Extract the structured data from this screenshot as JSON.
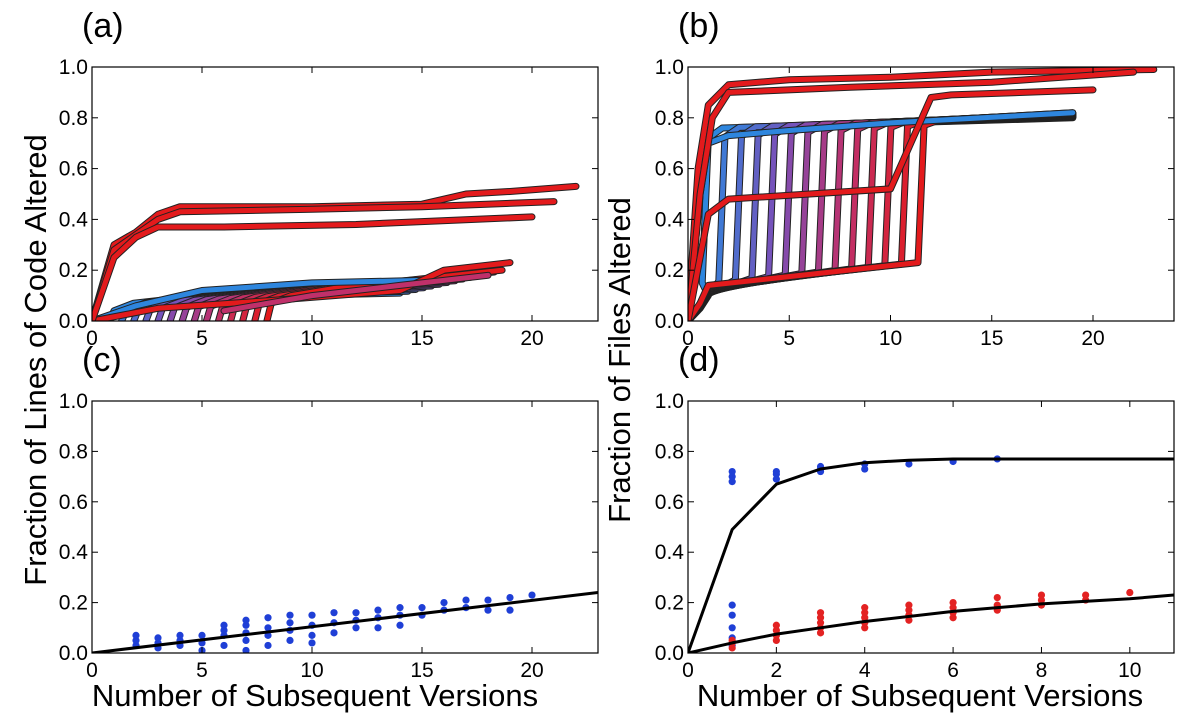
{
  "figure": {
    "ylabel_left": "Fraction of Lines of Code Altered",
    "ylabel_right": "Fraction of Files Altered",
    "xlabel_left": "Number of Subsequent Versions",
    "xlabel_right": "Number of Subsequent Versions"
  },
  "colors": {
    "red": "#e31a1c",
    "blue": "#2e86de",
    "purple": "#7a4fb8",
    "magenta": "#c0306a",
    "dot_blue": "#1f3fd6",
    "dot_red": "#e32222",
    "fit_line": "#000000"
  },
  "chart_data": [
    {
      "panel": "(a)",
      "type": "line",
      "xlim": [
        0,
        23
      ],
      "ylim": [
        0,
        1.0
      ],
      "xticks": [
        0,
        5,
        10,
        15,
        20
      ],
      "yticks": [
        0.0,
        0.2,
        0.4,
        0.6,
        0.8,
        1.0
      ],
      "grid": false,
      "upper_series": [
        {
          "x": [
            0,
            1,
            2,
            3,
            4,
            10,
            15,
            17,
            19,
            22
          ],
          "y": [
            0,
            0.3,
            0.35,
            0.42,
            0.45,
            0.45,
            0.46,
            0.5,
            0.51,
            0.53
          ]
        },
        {
          "x": [
            0,
            1,
            2,
            3,
            4,
            10,
            15,
            21
          ],
          "y": [
            0,
            0.28,
            0.34,
            0.4,
            0.43,
            0.44,
            0.45,
            0.47
          ]
        },
        {
          "x": [
            0,
            1,
            2,
            3,
            6,
            12,
            20
          ],
          "y": [
            0,
            0.25,
            0.33,
            0.37,
            0.37,
            0.38,
            0.41
          ]
        }
      ],
      "lower_series_end": [
        {
          "x": 19,
          "y": 0.23
        },
        {
          "x": 18,
          "y": 0.18
        }
      ],
      "lower_bundle_count": 14
    },
    {
      "panel": "(b)",
      "type": "line",
      "xlim": [
        0,
        24
      ],
      "ylim": [
        0,
        1.0
      ],
      "xticks": [
        0,
        5,
        10,
        15,
        20
      ],
      "yticks": [
        0.0,
        0.2,
        0.4,
        0.6,
        0.8,
        1.0
      ],
      "grid": false,
      "upper_series": [
        {
          "x": [
            0,
            0.5,
            1,
            2,
            5,
            10,
            15,
            23
          ],
          "y": [
            0,
            0.6,
            0.85,
            0.93,
            0.95,
            0.96,
            0.98,
            0.99
          ]
        },
        {
          "x": [
            0,
            0.6,
            1.2,
            2,
            8,
            15,
            22
          ],
          "y": [
            0,
            0.5,
            0.8,
            0.9,
            0.92,
            0.94,
            0.98
          ]
        },
        {
          "x": [
            0,
            1,
            2,
            10,
            12,
            13,
            20
          ],
          "y": [
            0,
            0.42,
            0.48,
            0.52,
            0.88,
            0.89,
            0.91
          ]
        }
      ],
      "bundle_count": 14,
      "bundle_end": {
        "x": 19,
        "y": 0.82
      }
    },
    {
      "panel": "(c)",
      "type": "scatter",
      "xlim": [
        0,
        23
      ],
      "ylim": [
        0,
        1.0
      ],
      "xticks": [
        0,
        5,
        10,
        15,
        20
      ],
      "yticks": [
        0.0,
        0.2,
        0.4,
        0.6,
        0.8,
        1.0
      ],
      "grid": false,
      "points": [
        [
          2,
          0.03
        ],
        [
          2,
          0.05
        ],
        [
          2,
          0.07
        ],
        [
          3,
          0.02
        ],
        [
          3,
          0.04
        ],
        [
          3,
          0.06
        ],
        [
          4,
          0.03
        ],
        [
          4,
          0.05
        ],
        [
          4,
          0.07
        ],
        [
          5,
          0.01
        ],
        [
          5,
          0.04
        ],
        [
          5,
          0.07
        ],
        [
          6,
          0.03
        ],
        [
          6,
          0.07
        ],
        [
          6,
          0.09
        ],
        [
          6,
          0.11
        ],
        [
          7,
          0.01
        ],
        [
          7,
          0.05
        ],
        [
          7,
          0.08
        ],
        [
          7,
          0.11
        ],
        [
          7,
          0.13
        ],
        [
          8,
          0.03
        ],
        [
          8,
          0.07
        ],
        [
          8,
          0.1
        ],
        [
          8,
          0.14
        ],
        [
          9,
          0.05
        ],
        [
          9,
          0.09
        ],
        [
          9,
          0.12
        ],
        [
          9,
          0.15
        ],
        [
          10,
          0.04
        ],
        [
          10,
          0.07
        ],
        [
          10,
          0.11
        ],
        [
          10,
          0.15
        ],
        [
          11,
          0.08
        ],
        [
          11,
          0.12
        ],
        [
          11,
          0.16
        ],
        [
          12,
          0.1
        ],
        [
          12,
          0.13
        ],
        [
          12,
          0.16
        ],
        [
          13,
          0.1
        ],
        [
          13,
          0.14
        ],
        [
          13,
          0.17
        ],
        [
          14,
          0.11
        ],
        [
          14,
          0.15
        ],
        [
          14,
          0.18
        ],
        [
          15,
          0.15
        ],
        [
          15,
          0.18
        ],
        [
          16,
          0.17
        ],
        [
          16,
          0.2
        ],
        [
          17,
          0.18
        ],
        [
          17,
          0.21
        ],
        [
          18,
          0.17
        ],
        [
          18,
          0.21
        ],
        [
          19,
          0.17
        ],
        [
          19,
          0.22
        ],
        [
          20,
          0.23
        ]
      ],
      "fit": {
        "x": [
          0,
          23
        ],
        "y": [
          0,
          0.24
        ]
      }
    },
    {
      "panel": "(d)",
      "type": "scatter",
      "xlim": [
        0,
        11
      ],
      "ylim": [
        0,
        1.0
      ],
      "xticks": [
        0,
        2,
        4,
        6,
        8,
        10
      ],
      "yticks": [
        0.0,
        0.2,
        0.4,
        0.6,
        0.8,
        1.0
      ],
      "grid": false,
      "blue_points": [
        [
          1,
          0.68
        ],
        [
          1,
          0.7
        ],
        [
          1,
          0.72
        ],
        [
          1,
          0.19
        ],
        [
          1,
          0.15
        ],
        [
          1,
          0.1
        ],
        [
          1,
          0.06
        ],
        [
          1,
          0.03
        ],
        [
          2,
          0.69
        ],
        [
          2,
          0.71
        ],
        [
          2,
          0.72
        ],
        [
          3,
          0.72
        ],
        [
          3,
          0.73
        ],
        [
          3,
          0.74
        ],
        [
          4,
          0.73
        ],
        [
          4,
          0.75
        ],
        [
          5,
          0.75
        ],
        [
          6,
          0.76
        ],
        [
          7,
          0.77
        ]
      ],
      "red_points": [
        [
          1,
          0.02
        ],
        [
          1,
          0.04
        ],
        [
          1,
          0.05
        ],
        [
          2,
          0.05
        ],
        [
          2,
          0.07
        ],
        [
          2,
          0.09
        ],
        [
          2,
          0.11
        ],
        [
          3,
          0.08
        ],
        [
          3,
          0.1
        ],
        [
          3,
          0.12
        ],
        [
          3,
          0.14
        ],
        [
          3,
          0.16
        ],
        [
          4,
          0.1
        ],
        [
          4,
          0.12
        ],
        [
          4,
          0.14
        ],
        [
          4,
          0.16
        ],
        [
          4,
          0.18
        ],
        [
          5,
          0.13
        ],
        [
          5,
          0.15
        ],
        [
          5,
          0.17
        ],
        [
          5,
          0.19
        ],
        [
          6,
          0.14
        ],
        [
          6,
          0.16
        ],
        [
          6,
          0.18
        ],
        [
          6,
          0.2
        ],
        [
          7,
          0.17
        ],
        [
          7,
          0.19
        ],
        [
          7,
          0.22
        ],
        [
          8,
          0.19
        ],
        [
          8,
          0.21
        ],
        [
          8,
          0.23
        ],
        [
          9,
          0.21
        ],
        [
          9,
          0.23
        ],
        [
          10,
          0.24
        ]
      ],
      "fit_upper": {
        "x": [
          0,
          1,
          2,
          3,
          4,
          5,
          6,
          8,
          11
        ],
        "y": [
          0,
          0.49,
          0.67,
          0.73,
          0.755,
          0.765,
          0.77,
          0.77,
          0.77
        ]
      },
      "fit_lower": {
        "x": [
          0,
          1,
          2,
          3,
          4,
          6,
          8,
          10,
          11
        ],
        "y": [
          0,
          0.04,
          0.075,
          0.1,
          0.125,
          0.165,
          0.195,
          0.215,
          0.23
        ]
      }
    }
  ]
}
